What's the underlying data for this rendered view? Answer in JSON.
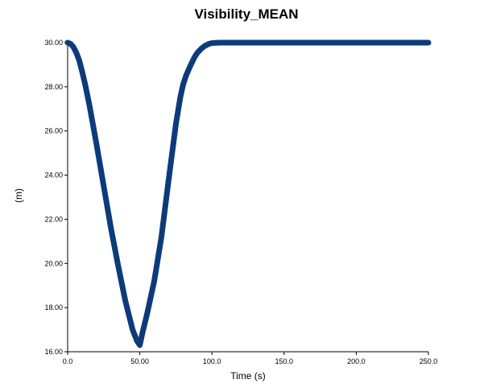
{
  "chart_data": {
    "type": "line",
    "title": "Visibility_MEAN",
    "xlabel": "Time (s)",
    "ylabel": "(m)",
    "xlim": [
      0,
      250
    ],
    "ylim": [
      16,
      30
    ],
    "x_ticks": [
      0,
      50,
      100,
      150,
      200,
      250
    ],
    "x_tick_labels": [
      "0.0",
      "50.00",
      "100.0",
      "150.0",
      "200.0",
      "250.0"
    ],
    "y_ticks": [
      16,
      18,
      20,
      22,
      24,
      26,
      28,
      30
    ],
    "y_tick_labels": [
      "16.00",
      "18.00",
      "20.00",
      "22.00",
      "24.00",
      "26.00",
      "28.00",
      "30.00"
    ],
    "grid": false,
    "colors": {
      "line": "#0d3b7a",
      "axis": "#000000"
    },
    "series": [
      {
        "x": [
          0,
          2,
          4,
          6,
          8,
          10,
          12,
          15,
          20,
          25,
          30,
          35,
          40,
          45,
          48,
          50,
          52,
          55,
          60,
          65,
          70,
          75,
          78,
          80,
          82,
          85,
          88,
          90,
          93,
          95,
          98,
          100,
          105,
          110,
          150,
          200,
          250
        ],
        "y": [
          30.0,
          29.95,
          29.8,
          29.55,
          29.2,
          28.7,
          28.15,
          27.2,
          25.4,
          23.5,
          21.6,
          19.9,
          18.3,
          17.0,
          16.5,
          16.3,
          16.9,
          17.7,
          19.2,
          21.2,
          23.8,
          26.3,
          27.5,
          28.1,
          28.5,
          28.95,
          29.35,
          29.55,
          29.75,
          29.85,
          29.95,
          29.98,
          30.0,
          30.0,
          30.0,
          30.0,
          30.0
        ]
      }
    ]
  }
}
